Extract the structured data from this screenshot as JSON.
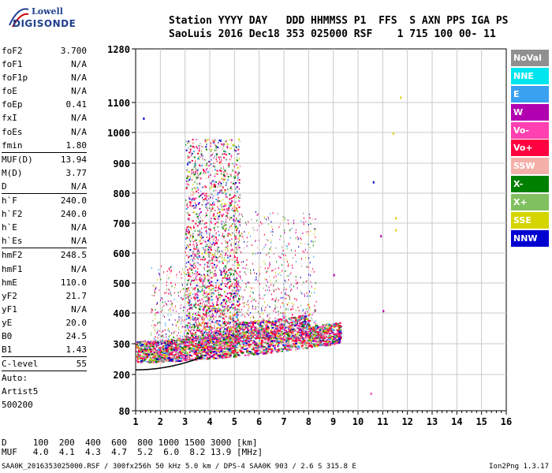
{
  "logo": {
    "line1": "Lowell",
    "line2": "DIGISONDE"
  },
  "header": {
    "line1": "Station YYYY DAY   DDD HHMMSS P1  FFS  S AXN PPS IGA PS",
    "line2": "SaoLuis 2016 Dec18 353 025000 RSF    1 715 100 00- 11"
  },
  "params": [
    {
      "group": [
        {
          "k": "foF2",
          "v": "3.700"
        },
        {
          "k": "foF1",
          "v": "N/A"
        },
        {
          "k": "foF1p",
          "v": "N/A"
        },
        {
          "k": "foE",
          "v": "N/A"
        },
        {
          "k": "foEp",
          "v": "0.41"
        },
        {
          "k": "fxI",
          "v": "N/A"
        },
        {
          "k": "foEs",
          "v": "N/A"
        },
        {
          "k": "fmin",
          "v": "1.80"
        }
      ]
    },
    {
      "group": [
        {
          "k": "MUF(D)",
          "v": "13.94"
        },
        {
          "k": "M(D)",
          "v": "3.77"
        },
        {
          "k": "D",
          "v": "N/A"
        }
      ]
    },
    {
      "group": [
        {
          "k": "h`F",
          "v": "240.0"
        },
        {
          "k": "h`F2",
          "v": "240.0"
        },
        {
          "k": "h`E",
          "v": "N/A"
        },
        {
          "k": "h`Es",
          "v": "N/A"
        }
      ]
    },
    {
      "group": [
        {
          "k": "hmF2",
          "v": "248.5"
        },
        {
          "k": "hmF1",
          "v": "N/A"
        },
        {
          "k": "hmE",
          "v": "110.0"
        },
        {
          "k": "yF2",
          "v": "21.7"
        },
        {
          "k": "yF1",
          "v": "N/A"
        },
        {
          "k": "yE",
          "v": "20.0"
        },
        {
          "k": "B0",
          "v": "24.5"
        },
        {
          "k": "B1",
          "v": "1.43"
        }
      ]
    },
    {
      "group": [
        {
          "k": "C-level",
          "v": "55"
        }
      ]
    },
    {
      "group": [
        {
          "k": "Auto:",
          "v": ""
        },
        {
          "k": "Artist5",
          "v": ""
        },
        {
          "k": "500200",
          "v": ""
        }
      ]
    }
  ],
  "legend": [
    {
      "label": "NoVal",
      "color": "#909090"
    },
    {
      "label": "NNE",
      "color": "#00e5ee"
    },
    {
      "label": "E",
      "color": "#3aa0f0"
    },
    {
      "label": "W",
      "color": "#b000b0"
    },
    {
      "label": "Vo-",
      "color": "#ff40b0"
    },
    {
      "label": "Vo+",
      "color": "#ff0040"
    },
    {
      "label": "SSW",
      "color": "#f4b0a8"
    },
    {
      "label": "X-",
      "color": "#008000"
    },
    {
      "label": "X+",
      "color": "#80c060"
    },
    {
      "label": "SSE",
      "color": "#d4d400"
    },
    {
      "label": "NNW",
      "color": "#0000d0"
    }
  ],
  "footer": {
    "line1": "D     100  200  400  600  800 1000 1500 3000 [km]",
    "line2": "MUF   4.0  4.1  4.3  4.7  5.2  6.0  8.2 13.9 [MHz]",
    "line3": "SAA0K_2016353025000.RSF / 300fx256h 50 kHz 5.0 km / DPS-4 SAA0K 903 / 2.6 S 315.8 E",
    "version": "Ion2Png 1.3.17"
  },
  "chart_data": {
    "type": "scatter",
    "x_label_ticks": [
      "1",
      "2",
      "3",
      "4",
      "5",
      "6",
      "7",
      "8",
      "9",
      "10",
      "11",
      "12",
      "13",
      "14",
      "15",
      "16"
    ],
    "y_label_ticks": [
      "80",
      "200",
      "300",
      "400",
      "500",
      "600",
      "700",
      "800",
      "900",
      "1000",
      "1100",
      "1280"
    ],
    "xlim": [
      1,
      16
    ],
    "y_scale": "virtual-height (nonlinear)",
    "ylim": [
      80,
      1280
    ],
    "grid": true,
    "legend_position": "right"
  }
}
